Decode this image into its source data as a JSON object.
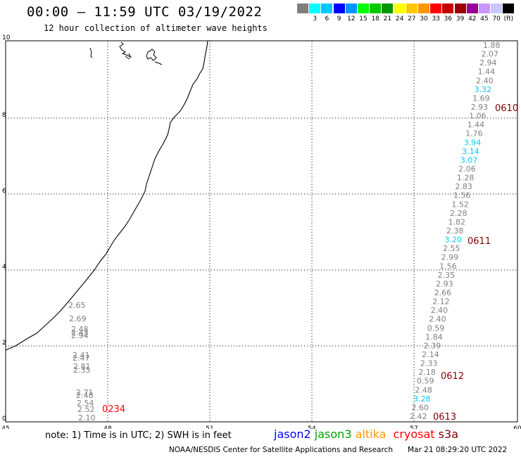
{
  "header": {
    "title": "00:00 – 11:59 UTC 03/19/2022",
    "subtitle": "12 hour collection of altimeter wave heights"
  },
  "colorbar": {
    "colors": [
      "#7f7f7f",
      "#00ffff",
      "#00c8ff",
      "#0000ff",
      "#0096ff",
      "#00ff00",
      "#00c800",
      "#009600",
      "#ffff00",
      "#ffc800",
      "#ff9600",
      "#ff0000",
      "#c80000",
      "#960000",
      "#960096",
      "#c896ff",
      "#c8c8ff",
      "#000000"
    ],
    "labels": [
      "",
      "3",
      "6",
      "9",
      "12",
      "15",
      "18",
      "21",
      "24",
      "27",
      "30",
      "33",
      "36",
      "39",
      "42",
      "45",
      "70",
      "(ft)"
    ]
  },
  "axes": {
    "x_ticks": [
      "45",
      "48",
      "51",
      "54",
      "57",
      "60"
    ],
    "y_ticks": [
      "0",
      "2",
      "4",
      "6",
      "8",
      "10"
    ]
  },
  "track_left": [
    {
      "v": "2.65",
      "c": "#7f7f7f"
    },
    {
      "v": "2.69",
      "c": "#7f7f7f"
    },
    {
      "v": "2.48",
      "c": "#7f7f7f"
    },
    {
      "v": "2.43",
      "c": "#7f7f7f"
    },
    {
      "v": "2.94",
      "c": "#7f7f7f"
    },
    {
      "v": "2.41",
      "c": "#7f7f7f"
    },
    {
      "v": "2.47",
      "c": "#7f7f7f"
    },
    {
      "v": "2.81",
      "c": "#7f7f7f"
    },
    {
      "v": "2.35",
      "c": "#7f7f7f"
    },
    {
      "v": "2.71",
      "c": "#7f7f7f"
    },
    {
      "v": "2.48",
      "c": "#7f7f7f"
    },
    {
      "v": "2.54",
      "c": "#7f7f7f"
    },
    {
      "v": "2.52",
      "c": "#7f7f7f"
    },
    {
      "v": "2.10",
      "c": "#7f7f7f"
    }
  ],
  "track_right": [
    {
      "v": "1.88",
      "c": "#7f7f7f"
    },
    {
      "v": "2.07",
      "c": "#7f7f7f"
    },
    {
      "v": "2.94",
      "c": "#7f7f7f"
    },
    {
      "v": "1.44",
      "c": "#7f7f7f"
    },
    {
      "v": "2.40",
      "c": "#7f7f7f"
    },
    {
      "v": "3.32",
      "c": "#00c8ff"
    },
    {
      "v": "1.69",
      "c": "#7f7f7f"
    },
    {
      "v": "2.93",
      "c": "#7f7f7f"
    },
    {
      "v": "1.06",
      "c": "#7f7f7f"
    },
    {
      "v": "1.44",
      "c": "#7f7f7f"
    },
    {
      "v": "1.76",
      "c": "#7f7f7f"
    },
    {
      "v": "3.94",
      "c": "#00c8ff"
    },
    {
      "v": "3.14",
      "c": "#00c8ff"
    },
    {
      "v": "3.07",
      "c": "#00c8ff"
    },
    {
      "v": "2.06",
      "c": "#7f7f7f"
    },
    {
      "v": "1.28",
      "c": "#7f7f7f"
    },
    {
      "v": "2.83",
      "c": "#7f7f7f"
    },
    {
      "v": "1.56",
      "c": "#7f7f7f"
    },
    {
      "v": "1.52",
      "c": "#7f7f7f"
    },
    {
      "v": "2.28",
      "c": "#7f7f7f"
    },
    {
      "v": "1.82",
      "c": "#7f7f7f"
    },
    {
      "v": "2.38",
      "c": "#7f7f7f"
    },
    {
      "v": "3.20",
      "c": "#00c8ff"
    },
    {
      "v": "2.55",
      "c": "#7f7f7f"
    },
    {
      "v": "2.99",
      "c": "#7f7f7f"
    },
    {
      "v": "1.56",
      "c": "#7f7f7f"
    },
    {
      "v": "2.35",
      "c": "#7f7f7f"
    },
    {
      "v": "2.93",
      "c": "#7f7f7f"
    },
    {
      "v": "2.66",
      "c": "#7f7f7f"
    },
    {
      "v": "2.12",
      "c": "#7f7f7f"
    },
    {
      "v": "2.40",
      "c": "#7f7f7f"
    },
    {
      "v": "2.40",
      "c": "#7f7f7f"
    },
    {
      "v": "0.59",
      "c": "#7f7f7f"
    },
    {
      "v": "1.84",
      "c": "#7f7f7f"
    },
    {
      "v": "2.39",
      "c": "#7f7f7f"
    },
    {
      "v": "2.14",
      "c": "#7f7f7f"
    },
    {
      "v": "2.33",
      "c": "#7f7f7f"
    },
    {
      "v": "2.18",
      "c": "#7f7f7f"
    },
    {
      "v": "0.59",
      "c": "#7f7f7f"
    },
    {
      "v": "2.48",
      "c": "#7f7f7f"
    },
    {
      "v": "3.28",
      "c": "#00c8ff"
    },
    {
      "v": "2.60",
      "c": "#7f7f7f"
    },
    {
      "v": "2.42",
      "c": "#7f7f7f"
    }
  ],
  "time_labels": [
    {
      "v": "0610",
      "c": "#800000"
    },
    {
      "v": "0611",
      "c": "#800000"
    },
    {
      "v": "0612",
      "c": "#800000"
    },
    {
      "v": "0613",
      "c": "#800000"
    },
    {
      "v": "0234",
      "c": "#ff0000"
    }
  ],
  "footer": {
    "note": "note: 1) Time is in UTC; 2) SWH is in feet",
    "sat_jason2": "jason2",
    "sat_jason3": "jason3",
    "sat_altika": "altika",
    "sat_cryosat": "cryosat",
    "sat_s3a": "s3a",
    "sat_colors": {
      "jason2": "#0000ff",
      "jason3": "#00a000",
      "altika": "#ff9600",
      "cryosat": "#ff0000",
      "s3a": "#800000"
    },
    "credit": "NOAA/NESDIS Center for Satellite Applications and Research",
    "stamp": "Mar 21 08:29:20 UTC 2022"
  }
}
